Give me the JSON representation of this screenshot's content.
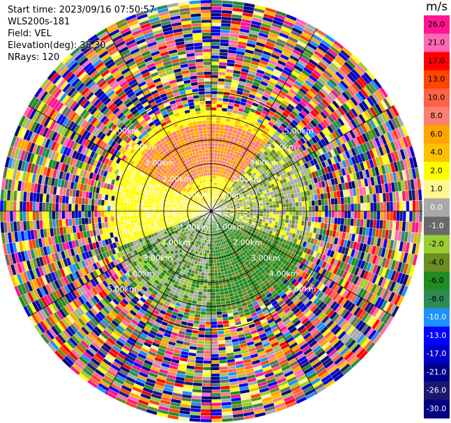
{
  "header": {
    "start_time": "Start time: 2023/09/16 07:50:57",
    "instrument": "WLS200s-181",
    "field": "Field: VEL",
    "elevation": "Elevation(deg): 35.30",
    "nrays": "NRays: 120"
  },
  "colorbar": {
    "unit": "m/s",
    "ticks": [
      "26.0",
      "21.0",
      "17.0",
      "13.0",
      "10.0",
      "8.0",
      "6.0",
      "4.0",
      "2.0",
      "1.0",
      "0.0",
      "-1.0",
      "-2.0",
      "-4.0",
      "-6.0",
      "-8.0",
      "-10.0",
      "-13.0",
      "-17.0",
      "-21.0",
      "-26.0",
      "-30.0"
    ],
    "colors": [
      "#ff1493",
      "#ff69b4",
      "#ff0000",
      "#ff4500",
      "#ff6347",
      "#fa8072",
      "#ffa500",
      "#ffc000",
      "#ffff00",
      "#fff68f",
      "#a9a9a9",
      "#696969",
      "#9acd32",
      "#6b8e23",
      "#228b22",
      "#2e8b57",
      "#1e90ff",
      "#0000ff",
      "#0000cd",
      "#00008b",
      "#191970",
      "#000080"
    ]
  },
  "range_labels": [
    "1.00km",
    "2.00km",
    "3.00km",
    "4.00km",
    "5.00km"
  ],
  "ppi": {
    "max_range_km": 5.2,
    "nrays": 120,
    "signal_range_km": 2.4,
    "pattern": "near-field winds: warm colors toward north/west, green toward south/east; beyond ~2.4 km noisy mixed colors"
  }
}
